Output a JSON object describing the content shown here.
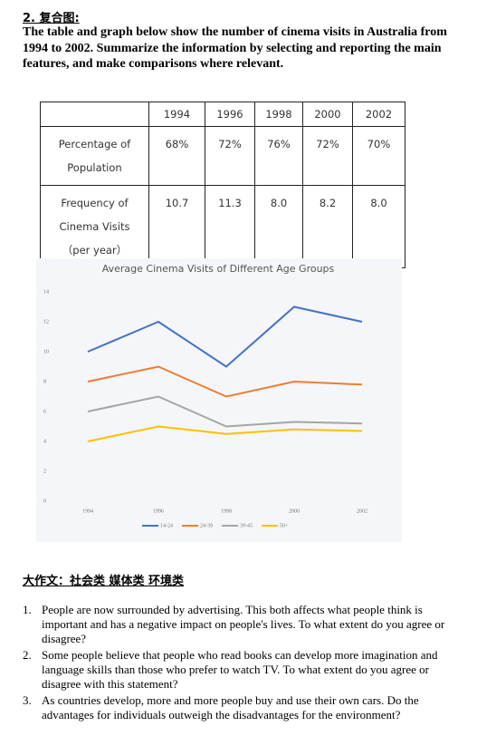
{
  "question": {
    "number": "2. 复合图:",
    "prompt": "The table and graph below show the number of cinema visits in Australia from 1994 to 2002. Summarize the information by selecting and reporting the main features,   and make comparisons where relevant."
  },
  "table": {
    "header": [
      "",
      "1994",
      "1996",
      "1998",
      "2000",
      "2002"
    ],
    "rows": [
      [
        "Percentage of Population",
        "68%",
        "72%",
        "76%",
        "72%",
        "70%"
      ],
      [
        "Frequency of Cinema Visits （per year）",
        "10.7",
        "11.3",
        "8.0",
        "8.2",
        "8.0"
      ]
    ]
  },
  "chart_data": {
    "type": "line",
    "title": "Average Cinema Visits of Different Age Groups",
    "categories": [
      "1994",
      "1996",
      "1998",
      "2000",
      "2002"
    ],
    "series": [
      {
        "name": "14-24",
        "color": "#4472c4",
        "values": [
          10,
          12,
          9,
          13,
          12
        ]
      },
      {
        "name": "24-39",
        "color": "#ed7d31",
        "values": [
          8,
          9,
          7,
          8,
          7.8
        ]
      },
      {
        "name": "39-45",
        "color": "#a5a5a5",
        "values": [
          6,
          7,
          5,
          5.3,
          5.2
        ]
      },
      {
        "name": "50+",
        "color": "#ffc000",
        "values": [
          4,
          5,
          4.5,
          4.8,
          4.7
        ]
      }
    ],
    "ylim": [
      0,
      14
    ],
    "yticks": [
      0,
      2,
      4,
      6,
      8,
      10,
      12,
      14
    ],
    "grid": false
  },
  "essay": {
    "heading": "大作文：社会类 媒体类 环境类",
    "items": [
      "People are now surrounded by advertising. This both affects what people think is important and has a negative impact on people's lives. To what extent do you agree or disagree?",
      "Some people believe that people who read books can develop more imagination and language skills than those who prefer to watch TV. To what extent do you agree or disagree with this statement?",
      "As countries develop, more and more people buy and use their own cars. Do the advantages for individuals outweigh the disadvantages for the environment?"
    ],
    "markers": [
      "1.",
      "2.",
      "3."
    ]
  }
}
